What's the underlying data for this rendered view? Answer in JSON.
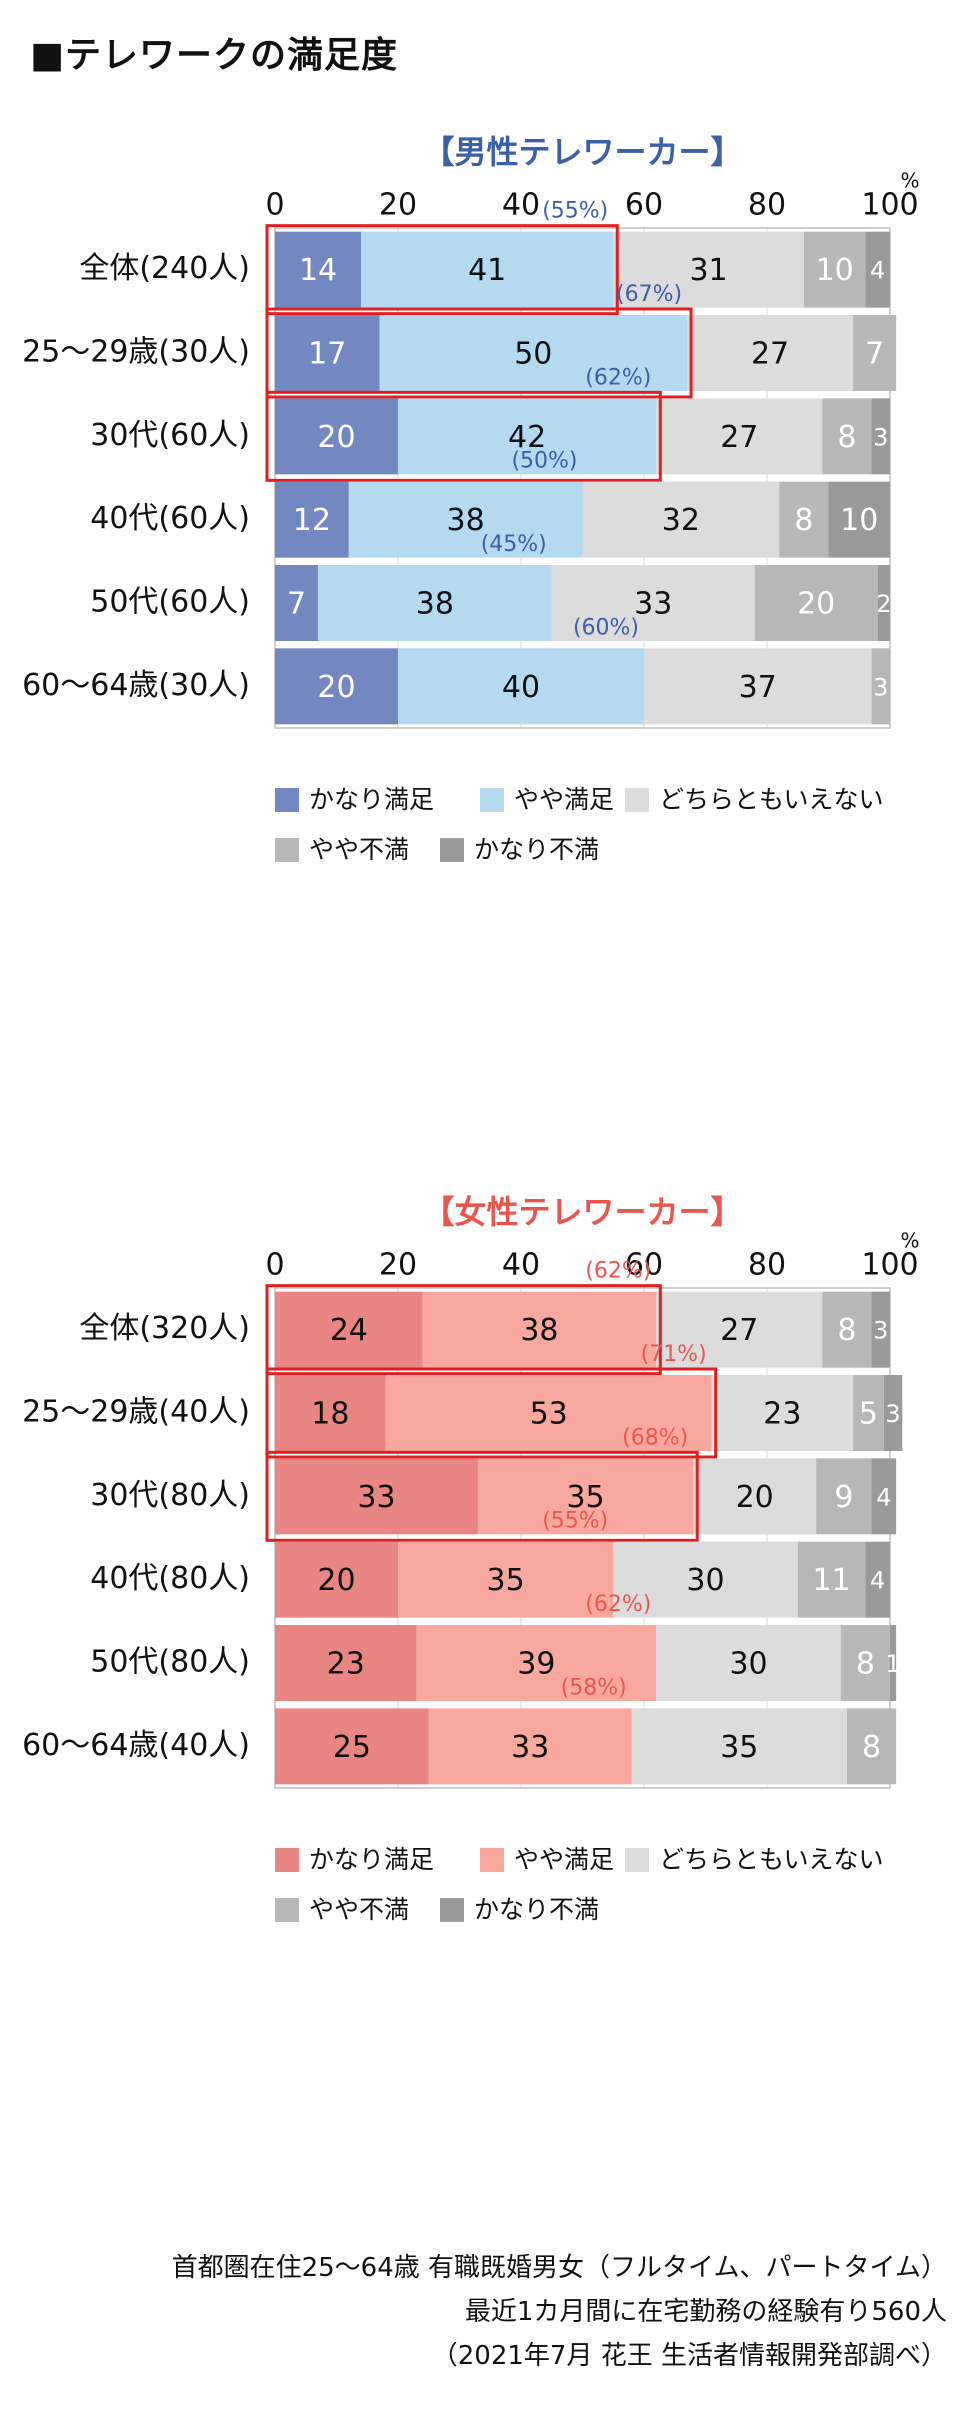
{
  "title": "■テレワークの満足度",
  "legend_labels": [
    "かなり満足",
    "やや満足",
    "どちらともいえない",
    "やや不満",
    "かなり不満"
  ],
  "percent_unit": "%",
  "x_ticks": [
    0,
    20,
    40,
    60,
    80,
    100
  ],
  "chart_data": [
    {
      "type": "bar",
      "stacked": true,
      "orientation": "horizontal",
      "title": "【男性テレワーカー】",
      "xlim": [
        0,
        100
      ],
      "categories": [
        "全体(240人)",
        "25〜29歳(30人)",
        "30代(60人)",
        "40代(60人)",
        "50代(60人)",
        "60〜64歳(30人)"
      ],
      "series": [
        {
          "name": "かなり満足",
          "color": "#7388c0",
          "values": [
            14,
            17,
            20,
            12,
            7,
            20
          ]
        },
        {
          "name": "やや満足",
          "color": "#b5d9ee",
          "values": [
            41,
            50,
            42,
            38,
            38,
            40
          ]
        },
        {
          "name": "どちらともいえない",
          "color": "#dcdcdc",
          "values": [
            31,
            27,
            27,
            32,
            33,
            37
          ]
        },
        {
          "name": "やや不満",
          "color": "#b7b7b7",
          "values": [
            10,
            7,
            8,
            8,
            20,
            3
          ]
        },
        {
          "name": "かなり不満",
          "color": "#9a9a9a",
          "values": [
            4,
            0,
            3,
            10,
            2,
            0
          ]
        }
      ],
      "satisfied_totals": [
        "(55%)",
        "(67%)",
        "(62%)",
        "(50%)",
        "(45%)",
        "(60%)"
      ],
      "highlighted": [
        true,
        true,
        true,
        false,
        false,
        false
      ],
      "legend_position": "bottom",
      "accent_color": "#3b5fa8"
    },
    {
      "type": "bar",
      "stacked": true,
      "orientation": "horizontal",
      "title": "【女性テレワーカー】",
      "xlim": [
        0,
        100
      ],
      "categories": [
        "全体(320人)",
        "25〜29歳(40人)",
        "30代(80人)",
        "40代(80人)",
        "50代(80人)",
        "60〜64歳(40人)"
      ],
      "series": [
        {
          "name": "かなり満足",
          "color": "#e98583",
          "values": [
            24,
            18,
            33,
            20,
            23,
            25
          ]
        },
        {
          "name": "やや満足",
          "color": "#f9a8a0",
          "values": [
            38,
            53,
            35,
            35,
            39,
            33
          ]
        },
        {
          "name": "どちらともいえない",
          "color": "#dcdcdc",
          "values": [
            27,
            23,
            20,
            30,
            30,
            35
          ]
        },
        {
          "name": "やや不満",
          "color": "#b7b7b7",
          "values": [
            8,
            5,
            9,
            11,
            8,
            8
          ]
        },
        {
          "name": "かなり不満",
          "color": "#9a9a9a",
          "values": [
            3,
            3,
            4,
            4,
            1,
            0
          ]
        }
      ],
      "satisfied_totals": [
        "(62%)",
        "(71%)",
        "(68%)",
        "(55%)",
        "(62%)",
        "(58%)"
      ],
      "highlighted": [
        true,
        true,
        true,
        false,
        false,
        false
      ],
      "legend_position": "bottom",
      "accent_color": "#e8574f"
    }
  ],
  "footer": [
    "首都圏在住25〜64歳 有職既婚男女（フルタイム、パートタイム）",
    "最近1カ月間に在宅勤務の経験有り560人",
    "（2021年7月 花王 生活者情報開発部調べ）"
  ]
}
